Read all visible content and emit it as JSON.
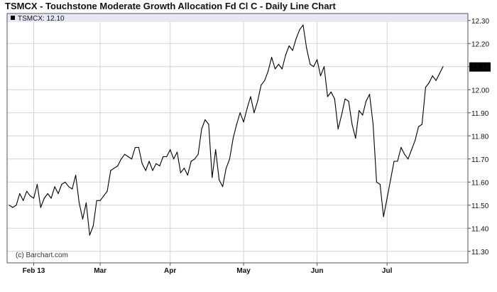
{
  "title": "TSMCX - Touchstone Moderate Growth Allocation Fd Cl C - Daily Line Chart",
  "legend": {
    "symbol": "TSMCX",
    "value": "12.10",
    "text": "TSMCX: 12.10"
  },
  "watermark": "(c) Barchart.com",
  "colors": {
    "line": "#000000",
    "legend_band": "#e6e6f5",
    "grid": "#d4d4d4",
    "last_badge_bg": "#000000",
    "last_badge_fg": "#ffffff"
  },
  "chart_data": {
    "type": "line",
    "title": "TSMCX - Touchstone Moderate Growth Allocation Fd Cl C - Daily Line Chart",
    "xlabel": "",
    "ylabel": "",
    "ylim": [
      11.25,
      12.33
    ],
    "grid": true,
    "y_axis_side": "right",
    "y_ticks": [
      "11.30",
      "11.40",
      "11.50",
      "11.60",
      "11.70",
      "11.80",
      "11.90",
      "12.00",
      "12.10",
      "12.20",
      "12.30"
    ],
    "x_ticks": [
      {
        "label": "Feb 13",
        "index": 7
      },
      {
        "label": "Mar",
        "index": 26
      },
      {
        "label": "Apr",
        "index": 46
      },
      {
        "label": "May",
        "index": 67
      },
      {
        "label": "Jun",
        "index": 88
      },
      {
        "label": "Jul",
        "index": 108
      }
    ],
    "last_value": "12.10",
    "series": [
      {
        "name": "TSMCX",
        "values": [
          11.5,
          11.49,
          11.5,
          11.55,
          11.52,
          11.56,
          11.54,
          11.53,
          11.59,
          11.49,
          11.53,
          11.55,
          11.53,
          11.58,
          11.55,
          11.59,
          11.6,
          11.58,
          11.57,
          11.63,
          11.51,
          11.44,
          11.51,
          11.37,
          11.41,
          11.52,
          11.52,
          11.54,
          11.56,
          11.65,
          11.66,
          11.67,
          11.7,
          11.72,
          11.71,
          11.7,
          11.75,
          11.75,
          11.68,
          11.65,
          11.69,
          11.65,
          11.68,
          11.67,
          11.71,
          11.71,
          11.74,
          11.7,
          11.73,
          11.64,
          11.66,
          11.63,
          11.69,
          11.7,
          11.72,
          11.83,
          11.87,
          11.85,
          11.62,
          11.74,
          11.61,
          11.58,
          11.66,
          11.7,
          11.79,
          11.85,
          11.9,
          11.86,
          11.92,
          11.97,
          11.9,
          11.95,
          12.02,
          12.04,
          12.08,
          12.14,
          12.09,
          12.11,
          12.09,
          12.15,
          12.19,
          12.17,
          12.22,
          12.26,
          12.28,
          12.18,
          12.11,
          12.1,
          12.13,
          12.06,
          12.1,
          11.97,
          11.99,
          11.96,
          11.83,
          11.89,
          11.96,
          11.95,
          11.85,
          11.79,
          11.91,
          11.89,
          11.95,
          11.98,
          11.85,
          11.6,
          11.59,
          11.45,
          11.53,
          11.61,
          11.69,
          11.69,
          11.75,
          11.72,
          11.7,
          11.74,
          11.78,
          11.84,
          11.85,
          12.01,
          12.03,
          12.06,
          12.04,
          12.07,
          12.1
        ]
      }
    ]
  }
}
